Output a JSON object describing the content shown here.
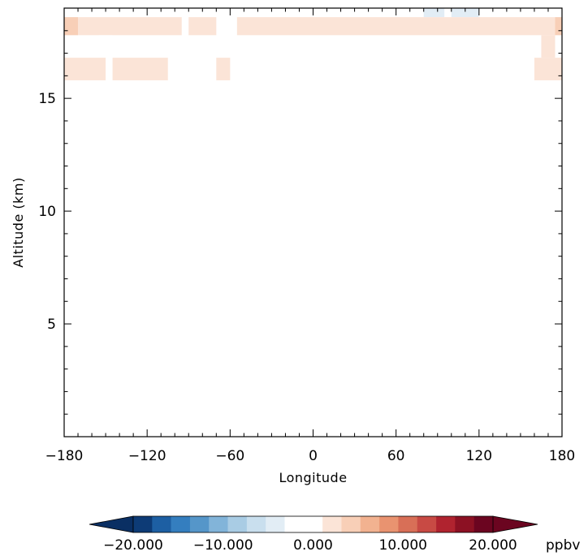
{
  "chart_data": {
    "type": "heatmap",
    "title": "",
    "xlabel": "Longitude",
    "ylabel": "Altitude (km)",
    "xlim": [
      -180,
      180
    ],
    "ylim": [
      0,
      19
    ],
    "x_ticks": [
      -180,
      -120,
      -60,
      0,
      60,
      120,
      180
    ],
    "x_tick_labels": [
      "−180",
      "−120",
      "−60",
      "0",
      "60",
      "120",
      "180"
    ],
    "y_ticks": [
      5,
      10,
      15
    ],
    "y_tick_labels": [
      "5",
      "10",
      "15"
    ],
    "colorbar": {
      "unit": "ppbv",
      "range": [
        -20,
        20
      ],
      "tick_values": [
        -20,
        -10,
        0,
        10,
        20
      ],
      "tick_labels": [
        "−20.000",
        "−10.000",
        "0.000",
        "10.000",
        "20.000"
      ],
      "colors": [
        "#0d3b76",
        "#1d5fa3",
        "#347ebf",
        "#5596c9",
        "#82b4d9",
        "#a9cce4",
        "#c9dfee",
        "#e2edf5",
        "#ffffff",
        "#ffffff",
        "#fbe4d7",
        "#f8cfb7",
        "#f2b290",
        "#e99370",
        "#d86f57",
        "#c84a44",
        "#b0232f",
        "#8c1123",
        "#6b0520"
      ],
      "under_color": "#0a2f63",
      "over_color": "#6b0520"
    },
    "cells": [
      {
        "x0": -180,
        "x1": -170,
        "y0": 18.6,
        "y1": 19,
        "value": -1.5
      },
      {
        "x0": -170,
        "x1": -50,
        "y0": 18.6,
        "y1": 19,
        "value": -0.5
      },
      {
        "x0": -50,
        "x1": 80,
        "y0": 18.6,
        "y1": 19,
        "value": -2
      },
      {
        "x0": 80,
        "x1": 95,
        "y0": 18.6,
        "y1": 19,
        "value": -4.5
      },
      {
        "x0": 95,
        "x1": 100,
        "y0": 18.6,
        "y1": 19,
        "value": -2
      },
      {
        "x0": 100,
        "x1": 120,
        "y0": 18.6,
        "y1": 19,
        "value": -4.5
      },
      {
        "x0": 120,
        "x1": 165,
        "y0": 18.6,
        "y1": 19,
        "value": -2
      },
      {
        "x0": 165,
        "x1": 170,
        "y0": 18.6,
        "y1": 19,
        "value": -0.5
      },
      {
        "x0": 170,
        "x1": 180,
        "y0": 18.6,
        "y1": 19,
        "value": -2
      },
      {
        "x0": -180,
        "x1": -170,
        "y0": 17.8,
        "y1": 18.6,
        "value": 3.5
      },
      {
        "x0": -170,
        "x1": -95,
        "y0": 17.8,
        "y1": 18.6,
        "value": 1.5
      },
      {
        "x0": -90,
        "x1": -70,
        "y0": 17.8,
        "y1": 18.6,
        "value": 1.5
      },
      {
        "x0": -55,
        "x1": 175,
        "y0": 17.8,
        "y1": 18.6,
        "value": 1.5
      },
      {
        "x0": 175,
        "x1": 180,
        "y0": 17.8,
        "y1": 18.6,
        "value": 3.5
      },
      {
        "x0": -155,
        "x1": -145,
        "y0": 16.8,
        "y1": 17.8,
        "value": -1.5
      },
      {
        "x0": 165,
        "x1": 175,
        "y0": 16.8,
        "y1": 17.8,
        "value": 1.5
      },
      {
        "x0": -180,
        "x1": -150,
        "y0": 15.8,
        "y1": 16.8,
        "value": 1.5
      },
      {
        "x0": -145,
        "x1": -105,
        "y0": 15.8,
        "y1": 16.8,
        "value": 1.5
      },
      {
        "x0": -70,
        "x1": -60,
        "y0": 15.8,
        "y1": 16.8,
        "value": 1.5
      },
      {
        "x0": 160,
        "x1": 180,
        "y0": 15.8,
        "y1": 16.8,
        "value": 1.5
      }
    ]
  }
}
